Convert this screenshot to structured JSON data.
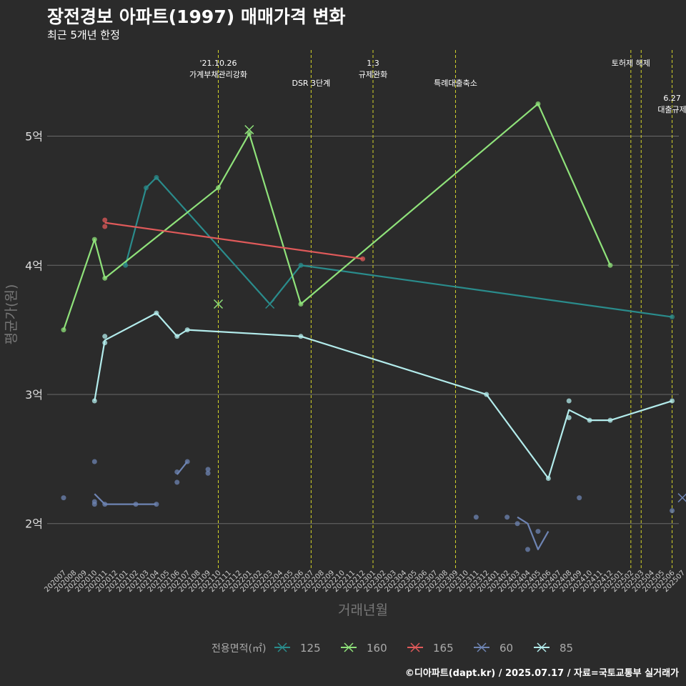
{
  "title": "장전경보 아파트(1997) 매매가격 변화",
  "subtitle": "최근 5개년 한정",
  "caption": "©디아파트(dapt.kr) / 2025.07.17 / 자료=국토교통부 실거래가",
  "chart_data": {
    "type": "line",
    "title": "장전경보 아파트(1997) 매매가격 변화",
    "subtitle": "최근 5개년 한정",
    "xlabel": "거래년월",
    "ylabel": "평균가(원)",
    "ylim": [
      1.65,
      5.7
    ],
    "y_ticks": [
      {
        "value": 2,
        "label": "2억"
      },
      {
        "value": 3,
        "label": "3억"
      },
      {
        "value": 4,
        "label": "4억"
      },
      {
        "value": 5,
        "label": "5억"
      }
    ],
    "x_categories": [
      "202007",
      "202008",
      "202009",
      "202010",
      "202011",
      "202012",
      "202101",
      "202102",
      "202103",
      "202104",
      "202105",
      "202106",
      "202107",
      "202108",
      "202109",
      "202110",
      "202111",
      "202112",
      "202201",
      "202202",
      "202203",
      "202204",
      "202205",
      "202206",
      "202207",
      "202208",
      "202209",
      "202210",
      "202211",
      "202212",
      "202301",
      "202302",
      "202303",
      "202304",
      "202305",
      "202306",
      "202307",
      "202308",
      "202309",
      "202310",
      "202311",
      "202312",
      "202401",
      "202402",
      "202403",
      "202404",
      "202405",
      "202406",
      "202407",
      "202408",
      "202409",
      "202410",
      "202411",
      "202412",
      "202501",
      "202502",
      "202503",
      "202504",
      "202505",
      "202506",
      "202507"
    ],
    "grid": true,
    "legend": {
      "title": "전용면적(㎡)",
      "position": "bottom"
    },
    "events": [
      {
        "x": "202110",
        "label": [
          "'21.10.26",
          "가계부채관리강화"
        ],
        "level": 0
      },
      {
        "x": "202207",
        "label": [
          "DSR 3단계"
        ],
        "level": 1
      },
      {
        "x": "202301",
        "label": [
          "1.3",
          "규제완화"
        ],
        "level": 0
      },
      {
        "x": "202309",
        "label": [
          "특례대출축소"
        ],
        "level": 1
      },
      {
        "x": "202502",
        "label": [
          "토허제 해제"
        ],
        "level": 0
      },
      {
        "x": "202503",
        "label": [],
        "level": 0
      },
      {
        "x": "202506",
        "label": [
          "6.27",
          "대출규제"
        ],
        "level": 2
      }
    ],
    "series": [
      {
        "name": "125",
        "color": "#2a8c8c",
        "line": [
          [
            "202101",
            4.0
          ],
          [
            "202103",
            4.6
          ],
          [
            "202104",
            4.68
          ],
          [
            "202203",
            3.7
          ],
          [
            "202206",
            4.0
          ],
          [
            "202506",
            3.6
          ]
        ],
        "points": [
          [
            "202101",
            4.0
          ],
          [
            "202103",
            4.6
          ],
          [
            "202104",
            4.68
          ],
          [
            "202206",
            4.0
          ],
          [
            "202506",
            3.6
          ]
        ],
        "crosses": [
          [
            "202203",
            3.7
          ]
        ]
      },
      {
        "name": "160",
        "color": "#8fe27a",
        "line": [
          [
            "202007",
            3.5
          ],
          [
            "202010",
            4.2
          ],
          [
            "202011",
            3.9
          ],
          [
            "202110",
            4.6
          ],
          [
            "202113",
            5.02
          ],
          [
            "202206",
            3.7
          ],
          [
            "202405",
            5.25
          ],
          [
            "202412",
            4.0
          ]
        ],
        "points": [
          [
            "202007",
            3.5
          ],
          [
            "202010",
            4.2
          ],
          [
            "202011",
            3.9
          ],
          [
            "202110",
            4.6
          ],
          [
            "202113",
            5.02
          ],
          [
            "202206",
            3.7
          ],
          [
            "202405",
            5.25
          ],
          [
            "202412",
            4.0
          ]
        ],
        "crosses": [
          [
            "202110",
            3.7
          ],
          [
            "202113",
            5.05
          ]
        ]
      },
      {
        "name": "165",
        "color": "#e05a5a",
        "line": [
          [
            "202011",
            4.33
          ],
          [
            "202212",
            4.05
          ]
        ],
        "points": [
          [
            "202011",
            4.35
          ],
          [
            "202011",
            4.3
          ],
          [
            "202212",
            4.05
          ]
        ],
        "crosses": []
      },
      {
        "name": "60",
        "color": "#6e84b3",
        "line_segments": [
          [
            [
              "202010",
              2.23
            ],
            [
              "202011",
              2.15
            ],
            [
              "202102",
              2.15
            ],
            [
              "202104",
              2.15
            ]
          ],
          [
            [
              "202106",
              2.38
            ],
            [
              "202107",
              2.48
            ]
          ],
          [
            [
              "202403",
              2.05
            ],
            [
              "202404",
              2.0
            ],
            [
              "202405",
              1.8
            ],
            [
              "202406",
              1.94
            ]
          ]
        ],
        "points": [
          [
            "202007",
            2.2
          ],
          [
            "202010",
            2.48
          ],
          [
            "202010",
            2.17
          ],
          [
            "202010",
            2.15
          ],
          [
            "202011",
            2.15
          ],
          [
            "202102",
            2.15
          ],
          [
            "202104",
            2.15
          ],
          [
            "202106",
            2.32
          ],
          [
            "202106",
            2.4
          ],
          [
            "202107",
            2.48
          ],
          [
            "202109",
            2.42
          ],
          [
            "202109",
            2.39
          ],
          [
            "202311",
            2.05
          ],
          [
            "202402",
            2.05
          ],
          [
            "202403",
            2.0
          ],
          [
            "202404",
            1.8
          ],
          [
            "202405",
            1.94
          ],
          [
            "202409",
            2.2
          ],
          [
            "202506",
            2.1
          ]
        ],
        "crosses": [
          [
            "202507",
            2.2
          ]
        ]
      },
      {
        "name": "85",
        "color": "#b3ecec",
        "line": [
          [
            "202010",
            2.95
          ],
          [
            "202011",
            3.42
          ],
          [
            "202104",
            3.63
          ],
          [
            "202106",
            3.45
          ],
          [
            "202107",
            3.5
          ],
          [
            "202206",
            3.45
          ],
          [
            "202312",
            3.0
          ],
          [
            "202406",
            2.35
          ],
          [
            "202408",
            2.88
          ],
          [
            "202410",
            2.8
          ],
          [
            "202412",
            2.8
          ],
          [
            "202506",
            2.95
          ]
        ],
        "points": [
          [
            "202010",
            2.95
          ],
          [
            "202011",
            3.4
          ],
          [
            "202011",
            3.45
          ],
          [
            "202104",
            3.63
          ],
          [
            "202106",
            3.45
          ],
          [
            "202107",
            3.5
          ],
          [
            "202206",
            3.45
          ],
          [
            "202312",
            3.0
          ],
          [
            "202406",
            2.35
          ],
          [
            "202408",
            2.95
          ],
          [
            "202408",
            2.82
          ],
          [
            "202410",
            2.8
          ],
          [
            "202412",
            2.8
          ],
          [
            "202506",
            2.95
          ]
        ],
        "crosses": []
      }
    ]
  }
}
